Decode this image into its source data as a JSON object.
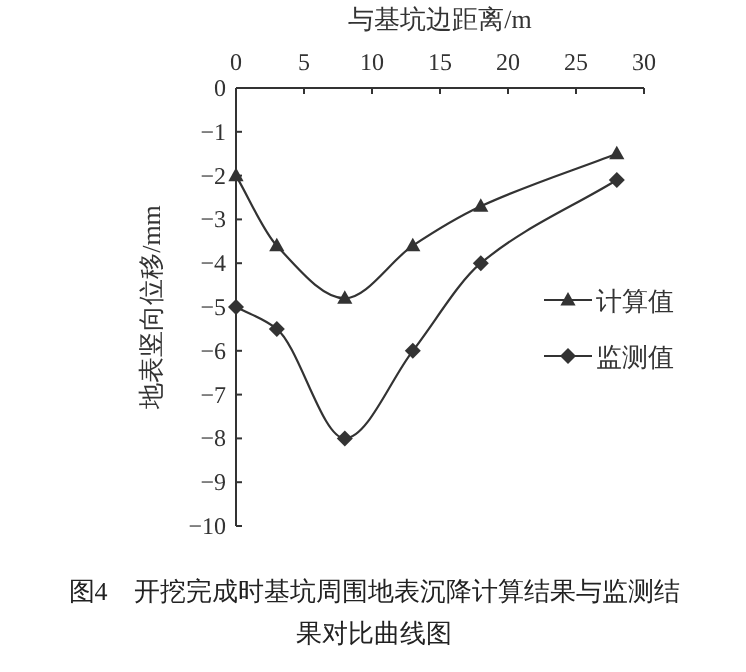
{
  "chart_data": {
    "type": "line",
    "title": "图4　开挖完成时基坑周围地表沉降计算结果与监测结果对比曲线图",
    "xlabel": "与基坑边距离/m",
    "ylabel": "地表竖向位移/mm",
    "x": [
      0,
      3,
      8,
      13,
      18,
      28
    ],
    "series": [
      {
        "name": "计算值",
        "color": "#333333",
        "marker": "triangle",
        "values": [
          -2,
          -3.6,
          -4.8,
          -3.6,
          -2.7,
          -1.5
        ]
      },
      {
        "name": "监测值",
        "color": "#333333",
        "marker": "diamond",
        "values": [
          -5,
          -5.5,
          -8,
          -6,
          -4,
          -2.1
        ]
      }
    ],
    "xlim": [
      0,
      30
    ],
    "xticks": [
      0,
      5,
      10,
      15,
      20,
      25,
      30
    ],
    "ylim": [
      -10,
      0
    ],
    "yticks": [
      0,
      -1,
      -2,
      -3,
      -4,
      -5,
      -6,
      -7,
      -8,
      -9,
      -10
    ],
    "grid": false,
    "legend": "right",
    "line_style": "solid"
  }
}
